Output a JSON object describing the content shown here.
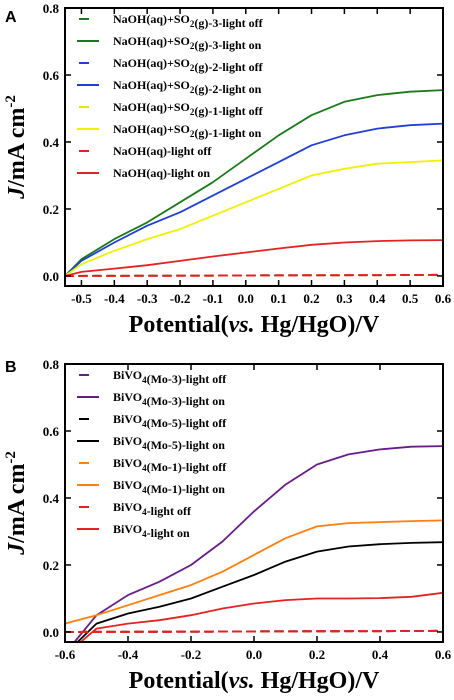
{
  "chart_data": [
    {
      "type": "line",
      "panel_label": "A",
      "xlabel": "Potential(vs. Hg/HgO)/V",
      "ylabel": "J/mA cm-2",
      "xlim": [
        -0.55,
        0.6
      ],
      "ylim": [
        -0.03,
        0.8
      ],
      "xticks": [
        -0.5,
        -0.4,
        -0.3,
        -0.2,
        -0.1,
        0.0,
        0.1,
        0.2,
        0.3,
        0.4,
        0.5,
        0.6
      ],
      "xtick_labels": [
        "-0.5",
        "-0.4",
        "-0.3",
        "-0.2",
        "-0.1",
        "0.0",
        "0.1",
        "0.2",
        "0.3",
        "0.4",
        "0.5",
        "0.6"
      ],
      "yticks": [
        0.0,
        0.2,
        0.4,
        0.6,
        0.8
      ],
      "ytick_labels": [
        "0.0",
        "0.2",
        "0.4",
        "0.6",
        "0.8"
      ],
      "legend_position": "top-left",
      "grid": false,
      "series": [
        {
          "name": "NaOH(aq)+SO2(g)-3-light off",
          "color": "#1a7a1a",
          "dash": true,
          "x": [
            -0.55,
            0.6
          ],
          "y": [
            0.0,
            0.003
          ]
        },
        {
          "name": "NaOH(aq)+SO2(g)-3-light on",
          "color": "#1a7a1a",
          "dash": false,
          "x": [
            -0.55,
            -0.5,
            -0.4,
            -0.3,
            -0.2,
            -0.1,
            0.0,
            0.1,
            0.2,
            0.3,
            0.4,
            0.5,
            0.6
          ],
          "y": [
            0.0,
            0.05,
            0.11,
            0.16,
            0.22,
            0.28,
            0.35,
            0.42,
            0.48,
            0.52,
            0.54,
            0.55,
            0.555
          ]
        },
        {
          "name": "NaOH(aq)+SO2(g)-2-light off",
          "color": "#1f3fd6",
          "dash": true,
          "x": [
            -0.55,
            0.6
          ],
          "y": [
            0.0,
            0.003
          ]
        },
        {
          "name": "NaOH(aq)+SO2(g)-2-light on",
          "color": "#1f3fd6",
          "dash": false,
          "x": [
            -0.55,
            -0.5,
            -0.4,
            -0.3,
            -0.2,
            -0.1,
            0.0,
            0.1,
            0.2,
            0.3,
            0.4,
            0.5,
            0.6
          ],
          "y": [
            0.0,
            0.045,
            0.1,
            0.15,
            0.19,
            0.24,
            0.29,
            0.34,
            0.39,
            0.42,
            0.44,
            0.45,
            0.455
          ]
        },
        {
          "name": "NaOH(aq)+SO2(g)-1-light off",
          "color": "#e6e600",
          "dash": true,
          "x": [
            -0.55,
            0.6
          ],
          "y": [
            0.0,
            0.003
          ]
        },
        {
          "name": "NaOH(aq)+SO2(g)-1-light on",
          "color": "#f0f000",
          "dash": false,
          "x": [
            -0.55,
            -0.5,
            -0.4,
            -0.3,
            -0.2,
            -0.1,
            0.0,
            0.1,
            0.2,
            0.3,
            0.4,
            0.5,
            0.6
          ],
          "y": [
            0.0,
            0.035,
            0.075,
            0.11,
            0.14,
            0.18,
            0.22,
            0.26,
            0.3,
            0.32,
            0.335,
            0.34,
            0.345
          ]
        },
        {
          "name": "NaOH(aq)-light off",
          "color": "#e52222",
          "dash": true,
          "x": [
            -0.55,
            0.6
          ],
          "y": [
            0.0,
            0.003
          ]
        },
        {
          "name": "NaOH(aq)-light on",
          "color": "#e52222",
          "dash": false,
          "x": [
            -0.55,
            -0.5,
            -0.4,
            -0.3,
            -0.2,
            -0.1,
            0.0,
            0.1,
            0.2,
            0.3,
            0.4,
            0.5,
            0.6
          ],
          "y": [
            0.0,
            0.012,
            0.022,
            0.032,
            0.045,
            0.058,
            0.07,
            0.082,
            0.093,
            0.1,
            0.104,
            0.106,
            0.107
          ]
        }
      ]
    },
    {
      "type": "line",
      "panel_label": "B",
      "xlabel": "Potential(vs. Hg/HgO)/V",
      "ylabel": "J/mA cm-2",
      "xlim": [
        -0.6,
        0.6
      ],
      "ylim": [
        -0.03,
        0.8
      ],
      "xticks": [
        -0.6,
        -0.4,
        -0.2,
        0.0,
        0.2,
        0.4,
        0.6
      ],
      "xtick_labels": [
        "-0.6",
        "-0.4",
        "-0.2",
        "0.0",
        "0.2",
        "0.4",
        "0.6"
      ],
      "yticks": [
        0.0,
        0.2,
        0.4,
        0.6,
        0.8
      ],
      "ytick_labels": [
        "0.0",
        "0.2",
        "0.4",
        "0.6",
        "0.8"
      ],
      "legend_position": "top-left",
      "grid": false,
      "series": [
        {
          "name": "BiVO4(Mo-3)-light off",
          "color": "#6a1b8a",
          "dash": true,
          "x": [
            -0.6,
            0.6
          ],
          "y": [
            0.0,
            0.003
          ]
        },
        {
          "name": "BiVO4(Mo-3)-light on",
          "color": "#6a1b8a",
          "dash": false,
          "x": [
            -0.57,
            -0.5,
            -0.4,
            -0.3,
            -0.2,
            -0.1,
            0.0,
            0.1,
            0.2,
            0.3,
            0.4,
            0.5,
            0.6
          ],
          "y": [
            -0.03,
            0.05,
            0.11,
            0.15,
            0.2,
            0.27,
            0.36,
            0.44,
            0.5,
            0.53,
            0.545,
            0.553,
            0.555
          ]
        },
        {
          "name": "BiVO4(Mo-5)-light off",
          "color": "#000000",
          "dash": true,
          "x": [
            -0.6,
            0.6
          ],
          "y": [
            0.0,
            0.003
          ]
        },
        {
          "name": "BiVO4(Mo-5)-light on",
          "color": "#000000",
          "dash": false,
          "x": [
            -0.56,
            -0.5,
            -0.4,
            -0.3,
            -0.2,
            -0.1,
            0.0,
            0.1,
            0.2,
            0.3,
            0.4,
            0.5,
            0.6
          ],
          "y": [
            -0.03,
            0.025,
            0.055,
            0.075,
            0.1,
            0.135,
            0.17,
            0.21,
            0.24,
            0.255,
            0.262,
            0.266,
            0.268
          ]
        },
        {
          "name": "BiVO4(Mo-1)-light off",
          "color": "#ff7f0e",
          "dash": true,
          "x": [
            -0.6,
            0.6
          ],
          "y": [
            0.0,
            0.003
          ]
        },
        {
          "name": "BiVO4(Mo-1)-light on",
          "color": "#ff7f0e",
          "dash": false,
          "x": [
            -0.6,
            -0.5,
            -0.4,
            -0.3,
            -0.2,
            -0.1,
            0.0,
            0.1,
            0.2,
            0.3,
            0.4,
            0.5,
            0.6
          ],
          "y": [
            0.025,
            0.05,
            0.08,
            0.11,
            0.14,
            0.18,
            0.23,
            0.28,
            0.315,
            0.325,
            0.328,
            0.331,
            0.333
          ]
        },
        {
          "name": "BiVO4-light off",
          "color": "#e52222",
          "dash": true,
          "x": [
            -0.6,
            0.6
          ],
          "y": [
            0.0,
            0.003
          ]
        },
        {
          "name": "BiVO4-light on",
          "color": "#e52222",
          "dash": false,
          "x": [
            -0.55,
            -0.5,
            -0.4,
            -0.3,
            -0.2,
            -0.1,
            0.0,
            0.1,
            0.2,
            0.3,
            0.4,
            0.5,
            0.6
          ],
          "y": [
            -0.03,
            0.01,
            0.025,
            0.035,
            0.05,
            0.07,
            0.085,
            0.095,
            0.1,
            0.1,
            0.101,
            0.105,
            0.117
          ]
        }
      ]
    }
  ]
}
